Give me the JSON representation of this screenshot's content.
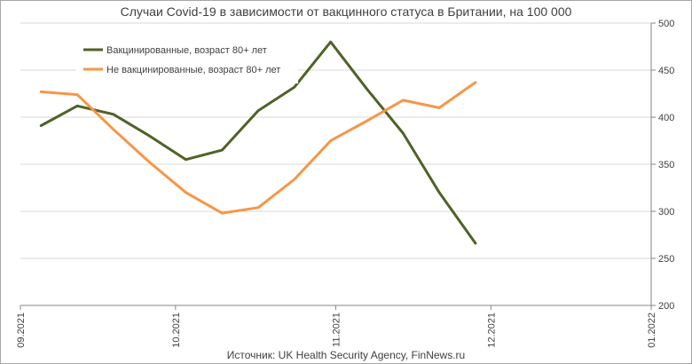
{
  "chart_data": {
    "type": "line",
    "title": "Случаи Covid-19 в зависимости от вакцинного статуса в Британии, на 100 000",
    "source": "Источник: UK Health Security Agency, FinNews.ru",
    "xlabel": "",
    "ylabel": "",
    "x_ticks": [
      "09.2021",
      "10.2021",
      "11.2021",
      "12.2021",
      "01.2022"
    ],
    "x_range": [
      "2021-09-01",
      "2022-01-01"
    ],
    "ylim": [
      200,
      500
    ],
    "y_ticks": [
      200,
      250,
      300,
      350,
      400,
      450,
      500
    ],
    "y_axis_side": "right",
    "grid": "horizontal",
    "legend_position": "top-left",
    "series": [
      {
        "name": "Вакцинированные, возраст 80+ лет",
        "color": "#4f6228",
        "x": [
          "2021-09-05",
          "2021-09-12",
          "2021-09-19",
          "2021-09-26",
          "2021-10-03",
          "2021-10-10",
          "2021-10-17",
          "2021-10-24",
          "2021-10-31",
          "2021-11-07",
          "2021-11-14",
          "2021-11-21",
          "2021-11-28"
        ],
        "values": [
          391,
          412,
          403,
          380,
          355,
          365,
          407,
          432,
          480,
          430,
          383,
          320,
          266
        ]
      },
      {
        "name": "Не вакцинированные, возраст 80+ лет",
        "color": "#f79646",
        "x": [
          "2021-09-05",
          "2021-09-12",
          "2021-09-19",
          "2021-09-26",
          "2021-10-03",
          "2021-10-10",
          "2021-10-17",
          "2021-10-24",
          "2021-10-31",
          "2021-11-07",
          "2021-11-14",
          "2021-11-21",
          "2021-11-28"
        ],
        "values": [
          427,
          424,
          387,
          352,
          320,
          298,
          304,
          334,
          375,
          396,
          418,
          410,
          437
        ]
      }
    ]
  }
}
